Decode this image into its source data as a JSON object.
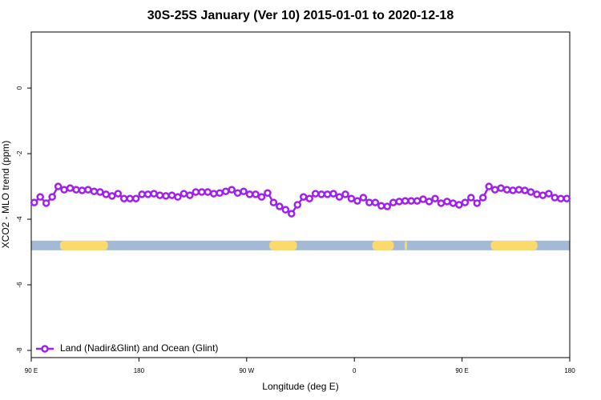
{
  "chart_data": {
    "type": "line",
    "title": "30S-25S January (Ver 10)   2015-01-01 to 2020-12-18",
    "x_label": "Longitude (deg E)",
    "y_label": "XCO2 - MLO trend (ppm)",
    "x": [
      92.5,
      97.5,
      102.5,
      107.5,
      112.5,
      117.5,
      122.5,
      127.5,
      132.5,
      137.5,
      142.5,
      147.5,
      152.5,
      157.5,
      162.5,
      167.5,
      172.5,
      177.5,
      182.5,
      187.5,
      192.5,
      197.5,
      202.5,
      207.5,
      212.5,
      217.5,
      222.5,
      227.5,
      232.5,
      237.5,
      242.5,
      247.5,
      252.5,
      257.5,
      262.5,
      267.5,
      272.5,
      277.5,
      282.5,
      287.5,
      292.5,
      297.5,
      302.5,
      307.5,
      312.5,
      317.5,
      322.5,
      327.5,
      332.5,
      337.5,
      342.5,
      347.5,
      352.5,
      357.5,
      362.5,
      367.5,
      372.5,
      377.5,
      382.5,
      387.5,
      392.5,
      397.5,
      402.5,
      407.5,
      412.5,
      417.5,
      422.5,
      427.5,
      432.5,
      437.5,
      442.5,
      447.5,
      452.5,
      457.5,
      462.5,
      467.5,
      472.5,
      477.5,
      482.5,
      487.5,
      492.5,
      497.5,
      502.5,
      507.5,
      512.5,
      517.5,
      522.5,
      527.5,
      532.5,
      537.5
    ],
    "series": [
      {
        "name": "Land (Nadir&Glint) and Ocean (Glint)",
        "color": "#a020f0",
        "values": [
          -3.49,
          -3.32,
          -3.51,
          -3.32,
          -3.0,
          -3.1,
          -3.05,
          -3.1,
          -3.12,
          -3.1,
          -3.15,
          -3.17,
          -3.24,
          -3.29,
          -3.22,
          -3.37,
          -3.37,
          -3.37,
          -3.24,
          -3.24,
          -3.22,
          -3.27,
          -3.29,
          -3.27,
          -3.32,
          -3.22,
          -3.27,
          -3.17,
          -3.17,
          -3.17,
          -3.22,
          -3.2,
          -3.15,
          -3.1,
          -3.2,
          -3.15,
          -3.24,
          -3.24,
          -3.32,
          -3.2,
          -3.49,
          -3.61,
          -3.71,
          -3.83,
          -3.56,
          -3.32,
          -3.37,
          -3.22,
          -3.24,
          -3.24,
          -3.22,
          -3.32,
          -3.24,
          -3.37,
          -3.44,
          -3.34,
          -3.49,
          -3.49,
          -3.59,
          -3.61,
          -3.49,
          -3.46,
          -3.44,
          -3.44,
          -3.44,
          -3.39,
          -3.46,
          -3.37,
          -3.51,
          -3.46,
          -3.51,
          -3.56,
          -3.49,
          -3.34,
          -3.51,
          -3.34,
          -3.0,
          -3.1,
          -3.05,
          -3.1,
          -3.12,
          -3.1,
          -3.12,
          -3.17,
          -3.24,
          -3.27,
          -3.22,
          -3.34,
          -3.37,
          -3.37
        ]
      }
    ],
    "xlim": [
      90,
      540
    ],
    "xticks": [
      {
        "value": 90,
        "label": "90 E"
      },
      {
        "value": 180,
        "label": "180"
      },
      {
        "value": 270,
        "label": "90 W"
      },
      {
        "value": 360,
        "label": "0"
      },
      {
        "value": 450,
        "label": "90 E"
      },
      {
        "value": 540,
        "label": "180"
      }
    ],
    "ylim": [
      -8.22,
      1.71
    ],
    "yticks": [
      0,
      -2,
      -4,
      -6,
      -8
    ],
    "legend": "bottom-left",
    "land_ocean_band": {
      "y": -4.8,
      "ocean_color": "#a3b9d6",
      "land_color": "#fcd96b",
      "land": [
        [
          114,
          154
        ],
        [
          289,
          312
        ],
        [
          375,
          393
        ],
        [
          402,
          404
        ],
        [
          474,
          513
        ]
      ]
    }
  }
}
